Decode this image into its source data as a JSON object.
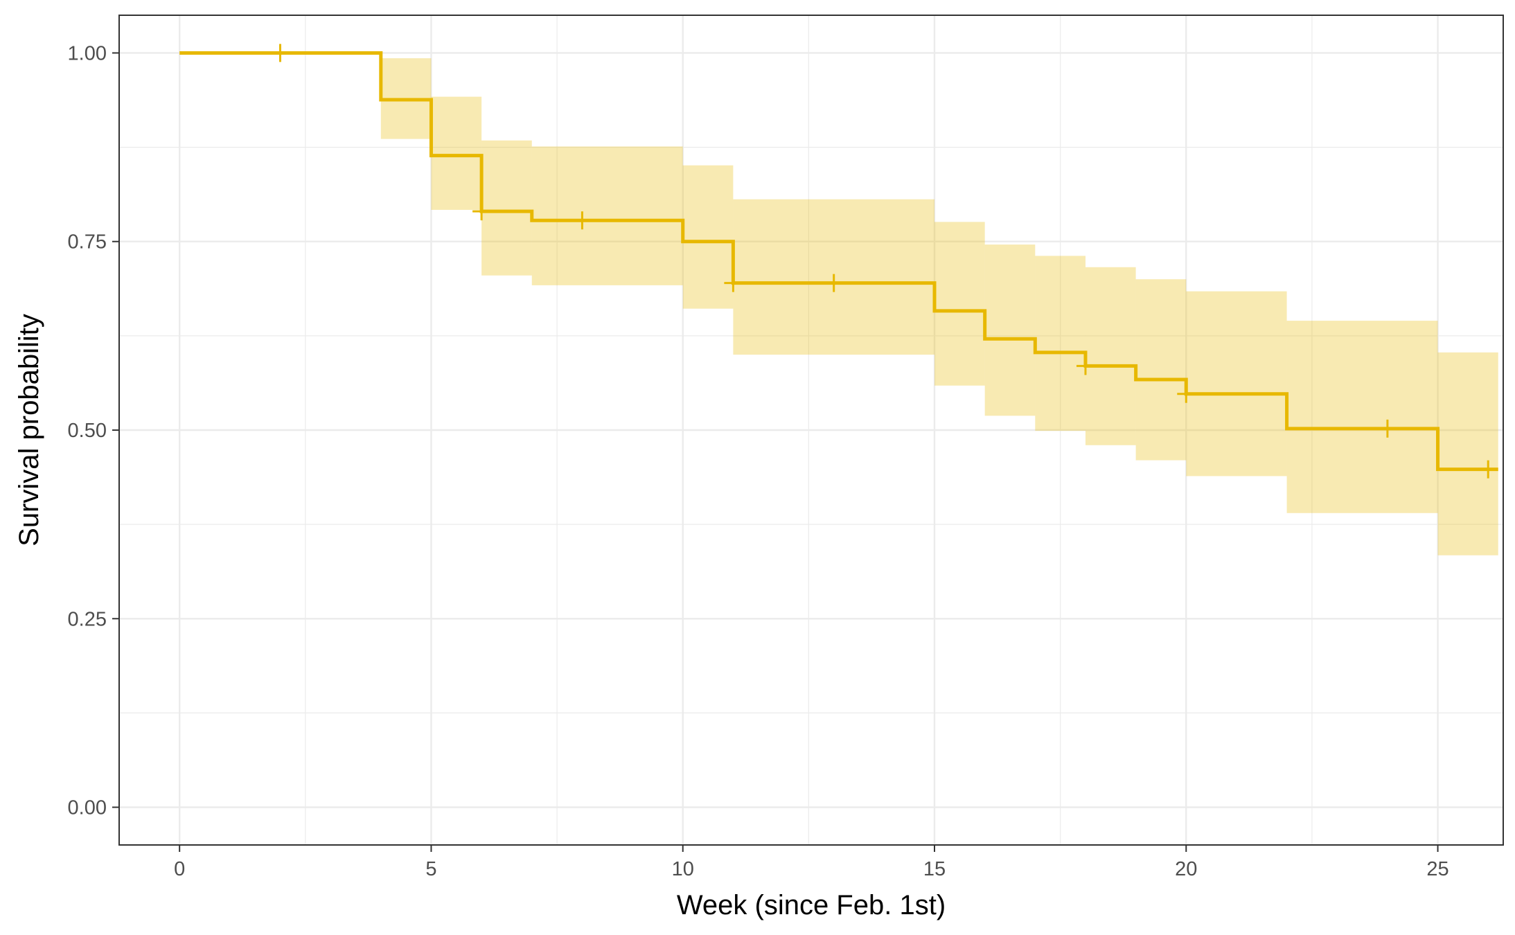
{
  "chart_data": {
    "type": "line",
    "subtype": "kaplan-meier-step",
    "title": "",
    "xlabel": "Week (since Feb. 1st)",
    "ylabel": "Survival probability",
    "xlim": [
      -1.2,
      26.3
    ],
    "ylim": [
      -0.05,
      1.05
    ],
    "xticks": [
      0,
      5,
      10,
      15,
      20,
      25
    ],
    "xtick_labels": [
      "0",
      "5",
      "10",
      "15",
      "20",
      "25"
    ],
    "yticks": [
      0,
      0.25,
      0.5,
      0.75,
      1.0
    ],
    "ytick_labels": [
      "0.00",
      "0.25",
      "0.50",
      "0.75",
      "1.00"
    ],
    "grid": true,
    "legend": "none",
    "colors": {
      "line": "#E7B800",
      "band": "#E7B800",
      "grid": "#ebebeb",
      "border": "#333333"
    },
    "series": [
      {
        "steps": [
          {
            "x": 0,
            "surv": 1.0,
            "lower": 1.0,
            "upper": 1.0
          },
          {
            "x": 4,
            "surv": 0.938,
            "lower": 0.886,
            "upper": 0.993
          },
          {
            "x": 5,
            "surv": 0.864,
            "lower": 0.792,
            "upper": 0.942
          },
          {
            "x": 6,
            "surv": 0.79,
            "lower": 0.705,
            "upper": 0.884
          },
          {
            "x": 7,
            "surv": 0.778,
            "lower": 0.692,
            "upper": 0.876
          },
          {
            "x": 10,
            "surv": 0.75,
            "lower": 0.661,
            "upper": 0.851
          },
          {
            "x": 11,
            "surv": 0.695,
            "lower": 0.6,
            "upper": 0.806
          },
          {
            "x": 15,
            "surv": 0.658,
            "lower": 0.559,
            "upper": 0.776
          },
          {
            "x": 16,
            "surv": 0.621,
            "lower": 0.519,
            "upper": 0.746
          },
          {
            "x": 17,
            "surv": 0.603,
            "lower": 0.499,
            "upper": 0.731
          },
          {
            "x": 18,
            "surv": 0.585,
            "lower": 0.48,
            "upper": 0.716
          },
          {
            "x": 19,
            "surv": 0.567,
            "lower": 0.46,
            "upper": 0.7
          },
          {
            "x": 20,
            "surv": 0.548,
            "lower": 0.439,
            "upper": 0.684
          },
          {
            "x": 22,
            "surv": 0.502,
            "lower": 0.39,
            "upper": 0.645
          },
          {
            "x": 25,
            "surv": 0.448,
            "lower": 0.334,
            "upper": 0.603
          }
        ],
        "end_x": 26.2,
        "censor_marks": [
          {
            "x": 2,
            "y": 1.0
          },
          {
            "x": 6,
            "y": 0.79
          },
          {
            "x": 8,
            "y": 0.778
          },
          {
            "x": 11,
            "y": 0.695
          },
          {
            "x": 13,
            "y": 0.695
          },
          {
            "x": 18,
            "y": 0.585
          },
          {
            "x": 20,
            "y": 0.548
          },
          {
            "x": 24,
            "y": 0.502
          },
          {
            "x": 26,
            "y": 0.448
          }
        ]
      }
    ]
  }
}
